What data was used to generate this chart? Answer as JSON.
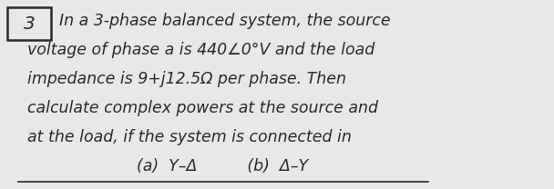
{
  "background_color": "#e8e8e8",
  "box_number": "3",
  "line1": "In a 3-phase balanced system, the source",
  "line2": "voltage of phase a is 440∠0°V and the load",
  "line3": "impedance is 9+j12.5Ω per phase. Then",
  "line4": "calculate complex powers at the source and",
  "line5": "at the load, if the system is connected in",
  "line6": "(a)  Y–Δ          (b)  Δ–Y",
  "font_size": 12.5,
  "text_color": "#2a2a2a",
  "figsize": [
    6.08,
    2.08
  ],
  "dpi": 100
}
